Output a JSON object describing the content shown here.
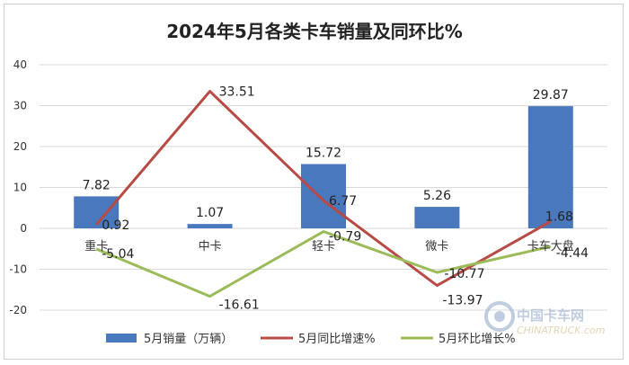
{
  "chart_data": {
    "type": "bar",
    "title": "2024年5月各类卡车销量及同环比%",
    "categories": [
      "重卡",
      "中卡",
      "轻卡",
      "微卡",
      "卡车大盘"
    ],
    "ylim": [
      -20,
      40
    ],
    "yticks": [
      40,
      30,
      20,
      10,
      0,
      -10,
      -20
    ],
    "grid": true,
    "legend_position": "bottom",
    "series": [
      {
        "name": "5月销量（万辆）",
        "type": "bar",
        "color": "#4a78bd",
        "values": [
          7.82,
          1.07,
          15.72,
          5.26,
          29.87
        ],
        "labels": [
          "7.82",
          "1.07",
          "15.72",
          "5.26",
          "29.87"
        ]
      },
      {
        "name": "5月同比增速%",
        "type": "line",
        "color": "#b84a45",
        "values": [
          0.92,
          33.51,
          6.77,
          -13.97,
          1.68
        ],
        "labels": [
          "0.92",
          "33.51",
          "6.77",
          "-13.97",
          "1.68"
        ]
      },
      {
        "name": "5月环比增长%",
        "type": "line",
        "color": "#9bbb59",
        "values": [
          -5.04,
          -16.61,
          -0.79,
          -10.77,
          -4.44
        ],
        "labels": [
          "-5.04",
          "-16.61",
          "-0.79",
          "-10.77",
          "-4.44"
        ]
      }
    ]
  },
  "watermark": {
    "logo_text": "中国卡车网",
    "logo_subtext": "CHINATRUCK.com"
  }
}
